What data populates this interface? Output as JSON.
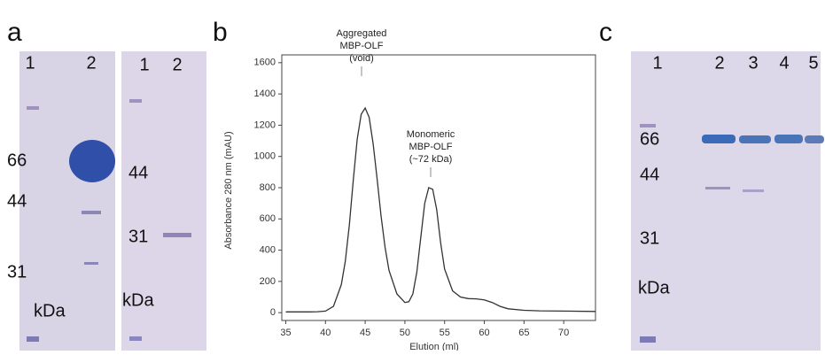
{
  "panels": {
    "a": {
      "label": "a",
      "gel1": {
        "lanes": [
          "1",
          "2"
        ],
        "markers": [
          "66",
          "44",
          "31"
        ],
        "unit": "kDa"
      },
      "gel2": {
        "lanes": [
          "1",
          "2"
        ],
        "markers": [
          "44",
          "31"
        ],
        "unit": "kDa"
      }
    },
    "c": {
      "label": "c",
      "gel": {
        "lanes": [
          "1",
          "2",
          "3",
          "4",
          "5"
        ],
        "markers": [
          "66",
          "44",
          "31"
        ],
        "unit": "kDa"
      }
    }
  },
  "chart_data": {
    "type": "line",
    "panel_label": "b",
    "y_label": "Absorbance 280 nm (mAU)",
    "x_label": "Elution (ml)",
    "annotations": [
      [
        "Aggregated",
        "MBP-OLF",
        "(void)"
      ],
      [
        "Monomeric",
        "MBP-OLF",
        "(~72 kDa)"
      ]
    ],
    "x": [
      35,
      36,
      37,
      38,
      39,
      40,
      41,
      42,
      42.5,
      43,
      43.5,
      44,
      44.5,
      45,
      45.5,
      46,
      46.5,
      47,
      47.5,
      48,
      49,
      50,
      50.5,
      51,
      51.5,
      52,
      52.5,
      53,
      53.5,
      54,
      54.5,
      55,
      56,
      57,
      58,
      59,
      60,
      61,
      62,
      63,
      65,
      67,
      70,
      74
    ],
    "values": [
      5,
      5,
      5,
      5,
      6,
      10,
      40,
      180,
      330,
      560,
      850,
      1110,
      1270,
      1310,
      1250,
      1080,
      860,
      620,
      420,
      270,
      120,
      65,
      70,
      120,
      260,
      480,
      700,
      800,
      790,
      660,
      450,
      280,
      140,
      100,
      90,
      88,
      82,
      65,
      40,
      25,
      15,
      12,
      10,
      8
    ],
    "color": "#333333",
    "xlim": [
      34.5,
      74
    ],
    "ylim": [
      -50,
      1650
    ],
    "xticks": [
      35,
      40,
      45,
      50,
      55,
      60,
      65,
      70
    ],
    "yticks": [
      0,
      200,
      400,
      600,
      800,
      1000,
      1200,
      1400,
      1600
    ]
  }
}
